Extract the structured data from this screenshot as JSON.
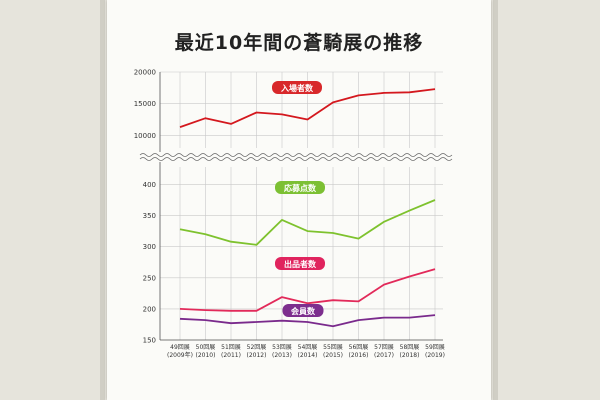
{
  "title": "最近10年間の蒼騎展の推移",
  "chart_data": {
    "type": "line",
    "title": "最近10年間の蒼騎展の推移",
    "categories": [
      [
        "49回展",
        "(2009年)"
      ],
      [
        "50回展",
        "(2010)"
      ],
      [
        "51回展",
        "(2011)"
      ],
      [
        "52回展",
        "(2012)"
      ],
      [
        "53回展",
        "(2013)"
      ],
      [
        "54回展",
        "(2014)"
      ],
      [
        "55回展",
        "(2015)"
      ],
      [
        "56回展",
        "(2016)"
      ],
      [
        "57回展",
        "(2017)"
      ],
      [
        "58回展",
        "(2018)"
      ],
      [
        "59回展",
        "(2019)"
      ]
    ],
    "upper_axis": {
      "ticks": [
        10000,
        15000,
        20000
      ],
      "range": [
        8000,
        20000
      ]
    },
    "lower_axis": {
      "ticks": [
        150,
        200,
        250,
        300,
        350,
        400
      ],
      "range": [
        150,
        420
      ]
    },
    "axis_break": true,
    "grid": true,
    "series": [
      {
        "name": "入場者数",
        "axis": "upper",
        "color": "#d4181e",
        "label_bg": "#d8282a",
        "values": [
          11300,
          12700,
          11800,
          13600,
          13300,
          12500,
          15200,
          16300,
          16700,
          16800,
          17300
        ]
      },
      {
        "name": "応募点数",
        "axis": "lower",
        "color": "#7ec22e",
        "label_bg": "#7cc033",
        "values": [
          328,
          320,
          308,
          303,
          343,
          325,
          322,
          313,
          340,
          358,
          375
        ]
      },
      {
        "name": "出品者数",
        "axis": "lower",
        "color": "#e22a5a",
        "label_bg": "#e0245e",
        "values": [
          200,
          198,
          197,
          197,
          219,
          209,
          214,
          212,
          239,
          252,
          264
        ]
      },
      {
        "name": "会員数",
        "axis": "lower",
        "color": "#7a2a8c",
        "label_bg": "#7d2e8e",
        "values": [
          184,
          182,
          177,
          179,
          181,
          179,
          172,
          182,
          186,
          186,
          190
        ]
      }
    ]
  }
}
